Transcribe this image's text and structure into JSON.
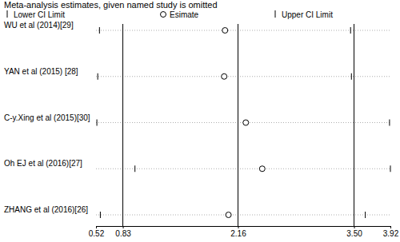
{
  "chart_data": {
    "type": "forest",
    "title": "Meta-analysis estimates, given named study is omitted",
    "categories": [
      "WU et al (2014)[29]",
      "YAN et al (2015) [28]",
      "C-y.Xing et al (2015)[30]",
      "Oh EJ et al (2016)[27]",
      "ZHANG et al (2016)[26]"
    ],
    "series": [
      {
        "name": "Lower CI Limit",
        "marker": "tick",
        "color": "#000000",
        "values": [
          0.56,
          0.54,
          0.53,
          0.97,
          0.57
        ]
      },
      {
        "name": "Esimate",
        "marker": "circle",
        "color": "#000000",
        "values": [
          2.01,
          2.0,
          2.25,
          2.44,
          2.05
        ]
      },
      {
        "name": "Upper CI Limit",
        "marker": "tick",
        "color": "#000000",
        "values": [
          3.46,
          3.47,
          3.91,
          3.92,
          3.63
        ]
      }
    ],
    "overall": {
      "lower": 0.83,
      "estimate": 2.16,
      "upper": 3.5
    },
    "xlim": [
      0.52,
      3.92
    ],
    "xticks": [
      0.52,
      0.83,
      2.16,
      {
        "value": 3.5,
        "label": "3.50"
      },
      3.92
    ]
  }
}
